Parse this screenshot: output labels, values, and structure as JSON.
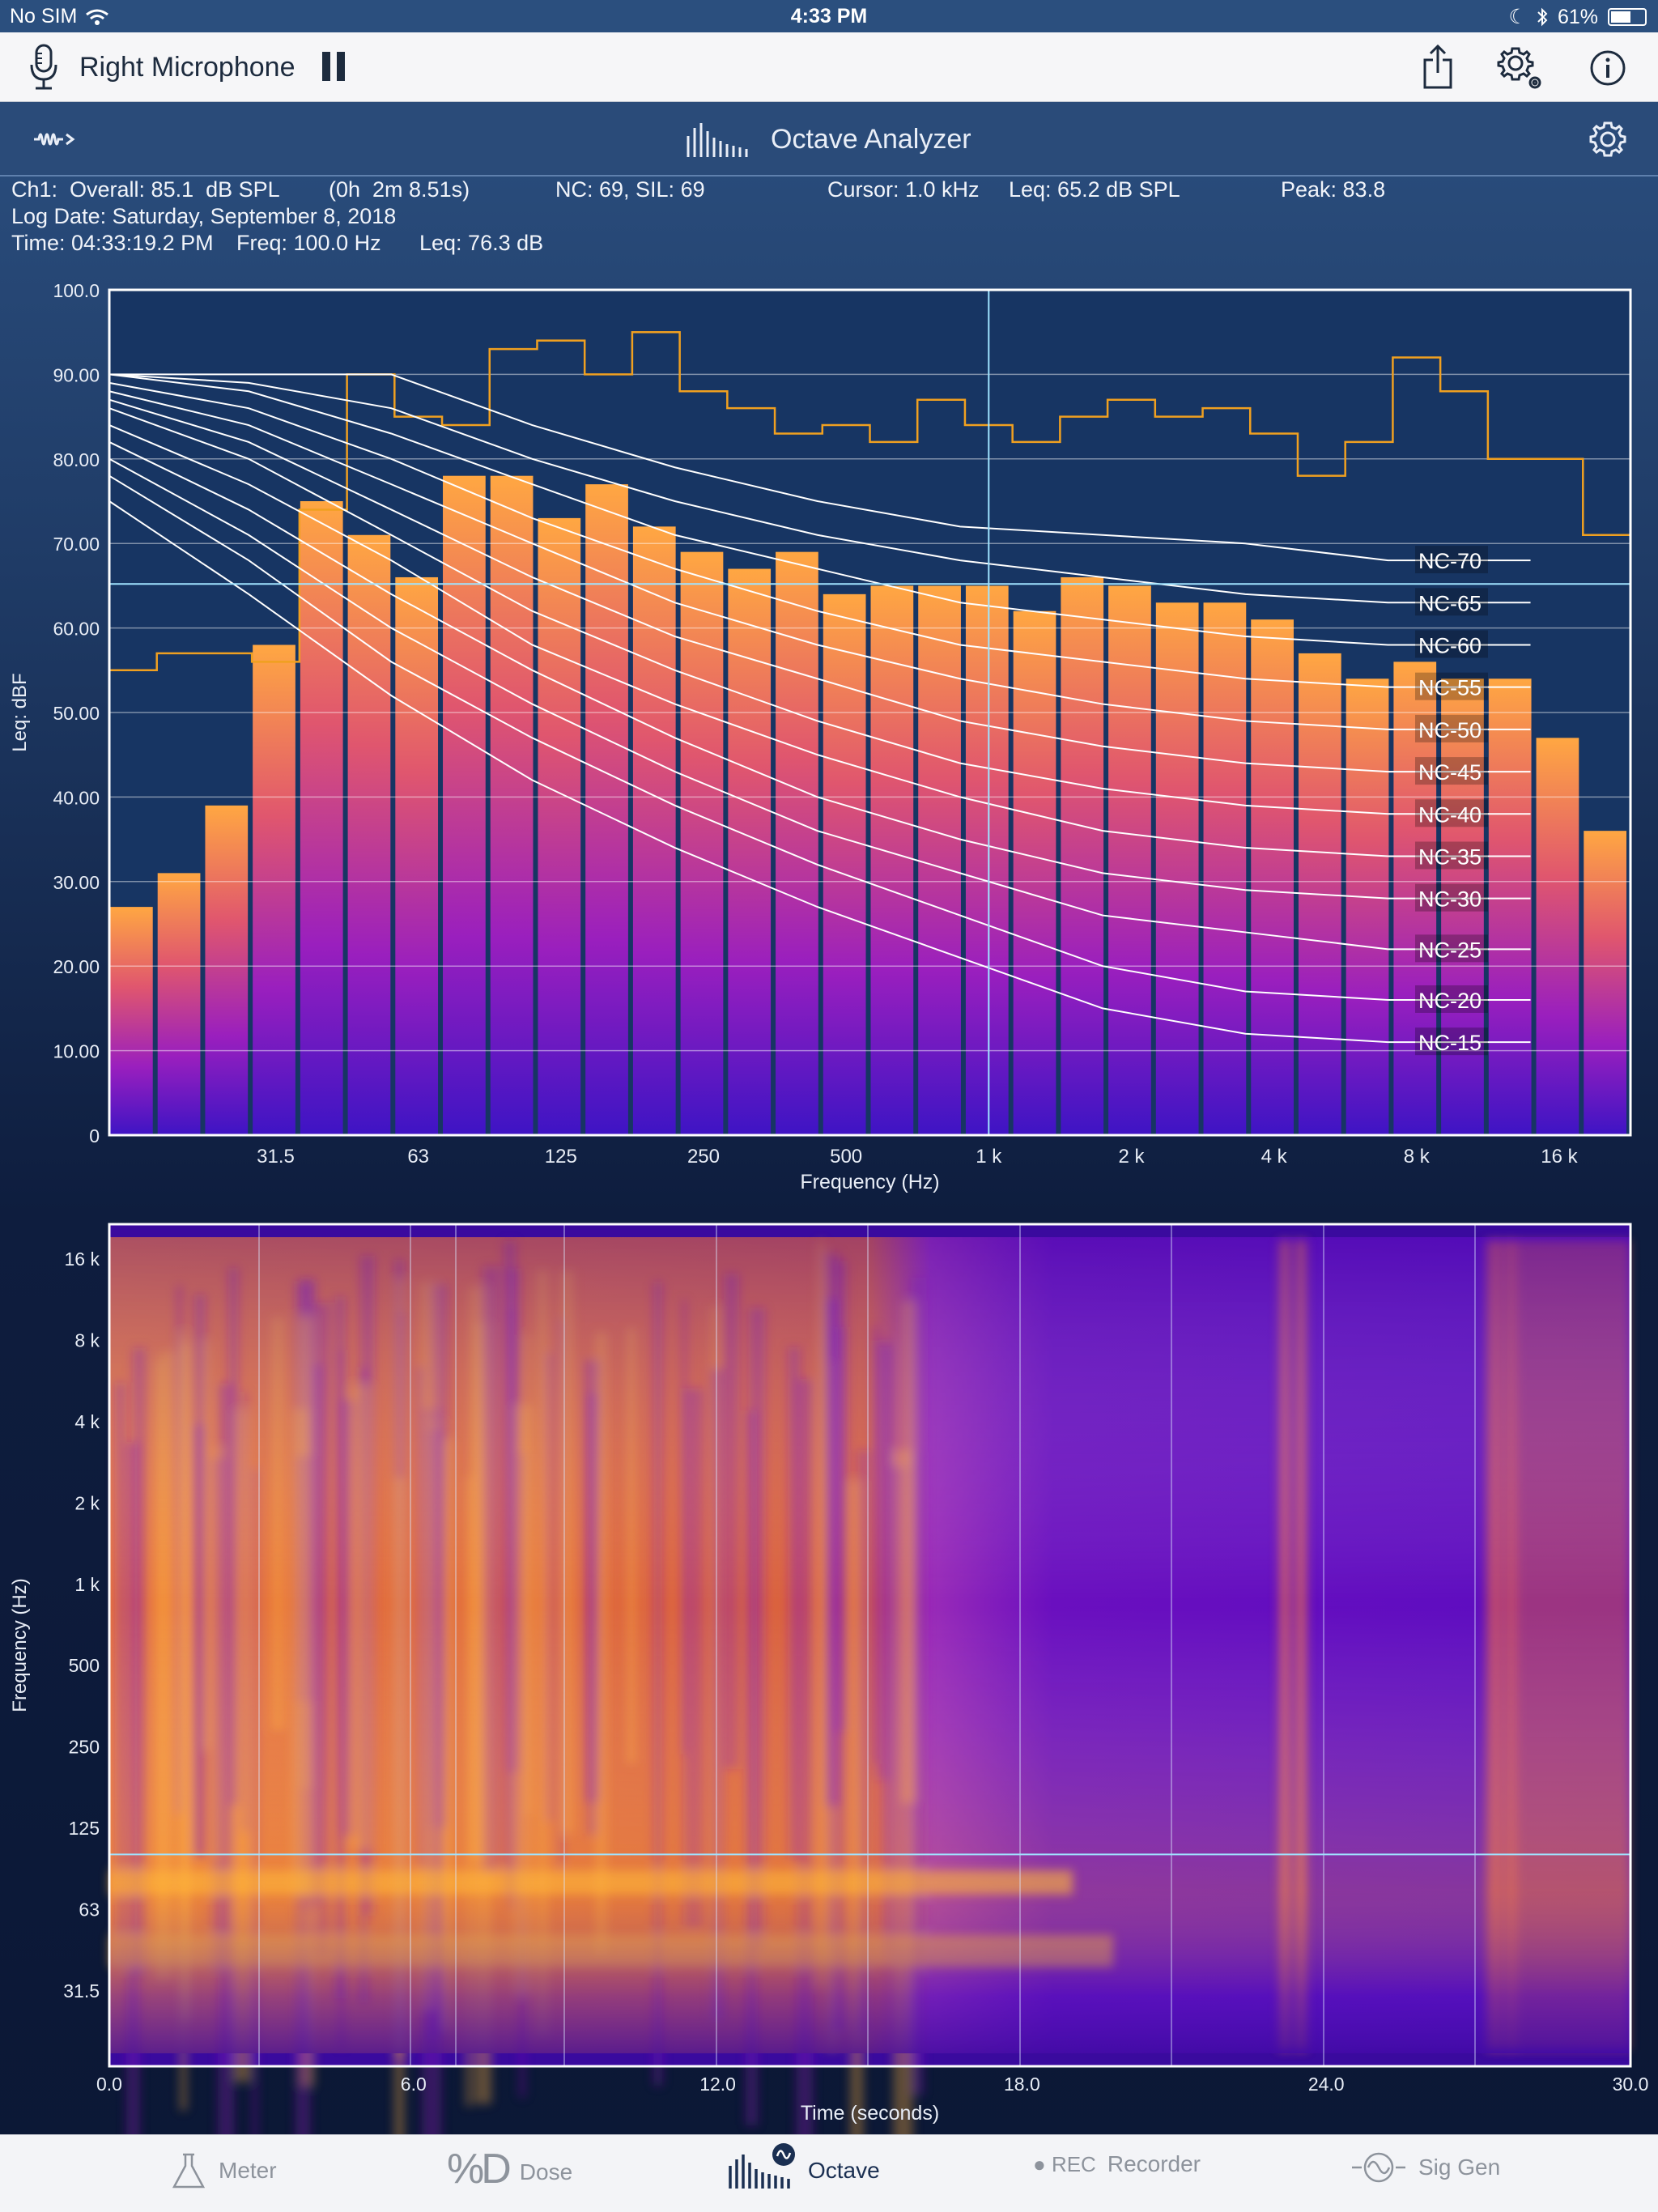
{
  "status": {
    "carrier": "No SIM",
    "time": "4:33 PM",
    "battery": "61%",
    "battery_level": 0.61
  },
  "toolbar": {
    "input_name": "Right Microphone"
  },
  "appbar": {
    "title": "Octave Analyzer"
  },
  "info": {
    "ch1": "Ch1:  Overall: 85.1  dB SPL",
    "duration": "(0h  2m 8.51s)",
    "nc": "NC: 69, SIL: 69",
    "cursor": "Cursor: 1.0 kHz",
    "leq_cursor": "Leq: 65.2 dB SPL",
    "peak": "Peak: 83.8",
    "log_date": "Log Date: Saturday, September 8, 2018",
    "time": "Time: 04:33:19.2 PM",
    "freq": "Freq: 100.0 Hz",
    "leq": "Leq: 76.3 dB"
  },
  "chart_data": [
    {
      "type": "bar",
      "title": "",
      "xlabel": "Frequency (Hz)",
      "ylabel": "Leq: dBF",
      "ylim": [
        0,
        100
      ],
      "yticks": [
        "0",
        "10.00",
        "20.00",
        "30.00",
        "40.00",
        "50.00",
        "60.00",
        "70.00",
        "80.00",
        "90.00",
        "100.0"
      ],
      "xtick_labels": [
        "31.5",
        "63",
        "125",
        "250",
        "500",
        "1 k",
        "2 k",
        "4 k",
        "8 k",
        "16 k"
      ],
      "bands_hz": [
        "16",
        "20",
        "25",
        "31.5",
        "40",
        "50",
        "63",
        "80",
        "100",
        "125",
        "160",
        "200",
        "250",
        "315",
        "400",
        "500",
        "630",
        "800",
        "1 k",
        "1.25 k",
        "1.6 k",
        "2 k",
        "2.5 k",
        "3.15 k",
        "4 k",
        "5 k",
        "6.3 k",
        "8 k",
        "10 k",
        "12.5 k",
        "16 k",
        "20 k"
      ],
      "series": [
        {
          "kind": "bars",
          "values": [
            27,
            31,
            39,
            58,
            75,
            71,
            66,
            78,
            78,
            73,
            77,
            72,
            69,
            67,
            69,
            64,
            65,
            65,
            65,
            62,
            66,
            65,
            63,
            63,
            61,
            57,
            54,
            56,
            54,
            54,
            47,
            36
          ]
        },
        {
          "kind": "peak-step",
          "values": [
            55,
            57,
            57,
            56,
            74,
            90,
            85,
            84,
            93,
            94,
            90,
            95,
            88,
            86,
            83,
            84,
            82,
            87,
            84,
            82,
            85,
            87,
            85,
            86,
            83,
            78,
            82,
            92,
            88,
            80,
            80,
            71
          ]
        }
      ],
      "nc_curves": [
        {
          "name": "NC-70",
          "values": [
            90,
            90,
            90,
            84,
            79,
            75,
            72,
            71,
            70,
            68,
            68
          ]
        },
        {
          "name": "NC-65",
          "values": [
            90,
            89,
            86,
            80,
            75,
            71,
            68,
            66,
            64,
            63,
            63
          ]
        },
        {
          "name": "NC-60",
          "values": [
            90,
            88,
            83,
            77,
            71,
            67,
            63,
            61,
            59,
            58,
            58
          ]
        },
        {
          "name": "NC-55",
          "values": [
            89,
            86,
            80,
            73,
            67,
            62,
            58,
            56,
            54,
            53,
            53
          ]
        },
        {
          "name": "NC-50",
          "values": [
            88,
            84,
            77,
            70,
            63,
            58,
            54,
            51,
            49,
            48,
            48
          ]
        },
        {
          "name": "NC-45",
          "values": [
            87,
            82,
            74,
            66,
            59,
            54,
            49,
            46,
            44,
            43,
            43
          ]
        },
        {
          "name": "NC-40",
          "values": [
            86,
            80,
            71,
            62,
            55,
            49,
            44,
            41,
            39,
            38,
            38
          ]
        },
        {
          "name": "NC-35",
          "values": [
            84,
            77,
            68,
            58,
            51,
            45,
            40,
            36,
            34,
            33,
            33
          ]
        },
        {
          "name": "NC-30",
          "values": [
            82,
            74,
            64,
            55,
            47,
            40,
            35,
            31,
            29,
            28,
            28
          ]
        },
        {
          "name": "NC-25",
          "values": [
            80,
            71,
            60,
            51,
            43,
            36,
            31,
            26,
            24,
            22,
            22
          ]
        },
        {
          "name": "NC-20",
          "values": [
            78,
            68,
            56,
            47,
            39,
            32,
            26,
            20,
            17,
            16,
            16
          ]
        },
        {
          "name": "NC-15",
          "values": [
            75,
            64,
            52,
            42,
            34,
            27,
            21,
            15,
            12,
            11,
            11
          ]
        }
      ],
      "nc_curve_freqs_hz": [
        16,
        31.5,
        63,
        125,
        250,
        500,
        1000,
        2000,
        4000,
        8000,
        16000
      ],
      "cursor": {
        "freq": "1 k",
        "level": 65.2
      }
    },
    {
      "type": "heatmap",
      "title": "",
      "xlabel": "Time (seconds)",
      "ylabel": "Frequency (Hz)",
      "xlim": [
        0,
        30
      ],
      "xticks": [
        "0.0",
        "6.0",
        "12.0",
        "18.0",
        "24.0",
        "30.0"
      ],
      "yticks": [
        "31.5",
        "63",
        "125",
        "250",
        "500",
        "1 k",
        "2 k",
        "4 k",
        "8 k",
        "16 k"
      ],
      "cursor": {
        "freq_hz": 100
      }
    }
  ],
  "tabs": [
    {
      "label": "Meter"
    },
    {
      "label": "Dose"
    },
    {
      "label": "Octave"
    },
    {
      "label": "Recorder"
    },
    {
      "label": "Sig Gen"
    }
  ],
  "tab_glyphs": {
    "dose": "%D",
    "rec": "REC"
  },
  "colors": {
    "bar_top": "#ffa440",
    "bar_bottom": "#4a12c9",
    "peak_line": "#f0a020",
    "cursor": "#9fe3ff"
  }
}
